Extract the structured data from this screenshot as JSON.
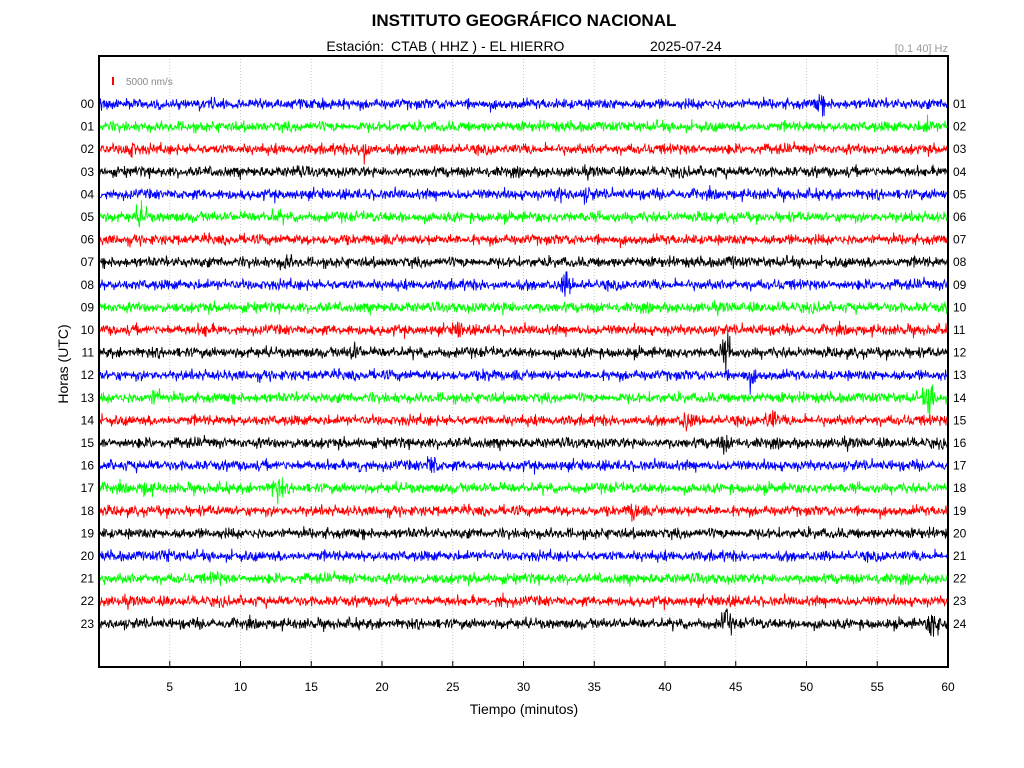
{
  "header": {
    "title": "INSTITUTO GEOGRÁFICO NACIONAL",
    "station_prefix": "Estación:",
    "station": "CTAB ( HHZ ) - EL HIERRO",
    "date": "2025-07-24",
    "filter": "[0.1 40] Hz",
    "scale": "5000 nm/s"
  },
  "chart_data": {
    "type": "line",
    "title": "INSTITUTO GEOGRÁFICO NACIONAL",
    "xlabel": "Tiempo (minutos)",
    "ylabel": "Horas (UTC)",
    "xlim": [
      0,
      60
    ],
    "x_ticks": [
      "5",
      "10",
      "15",
      "20",
      "25",
      "30",
      "35",
      "40",
      "45",
      "50",
      "55",
      "60"
    ],
    "grid": true,
    "left_labels": [
      "00",
      "01",
      "02",
      "03",
      "04",
      "05",
      "06",
      "07",
      "08",
      "09",
      "10",
      "11",
      "12",
      "13",
      "14",
      "15",
      "16",
      "17",
      "18",
      "19",
      "20",
      "21",
      "22",
      "23"
    ],
    "right_labels": [
      "01",
      "02",
      "03",
      "04",
      "05",
      "06",
      "07",
      "08",
      "09",
      "10",
      "11",
      "12",
      "13",
      "14",
      "15",
      "16",
      "17",
      "18",
      "19",
      "20",
      "21",
      "22",
      "23",
      "24"
    ],
    "trace_colors": [
      "#0000ff",
      "#00ff00",
      "#ff0000",
      "#000000"
    ],
    "scale_color": "#ff0000",
    "spikes": [
      {
        "hour": 0,
        "minute": 51.0,
        "amp": 1.6
      },
      {
        "hour": 1,
        "minute": 58.5,
        "amp": 1.5
      },
      {
        "hour": 2,
        "minute": 2.2,
        "amp": 1.6
      },
      {
        "hour": 2,
        "minute": 18.7,
        "amp": 2.0
      },
      {
        "hour": 3,
        "minute": 14.0,
        "amp": 1.2
      },
      {
        "hour": 4,
        "minute": 32.6,
        "amp": 1.5
      },
      {
        "hour": 4,
        "minute": 34.5,
        "amp": 1.4
      },
      {
        "hour": 5,
        "minute": 3.0,
        "amp": 1.8
      },
      {
        "hour": 5,
        "minute": 12.5,
        "amp": 1.3
      },
      {
        "hour": 6,
        "minute": 17.0,
        "amp": 1.1
      },
      {
        "hour": 7,
        "minute": 13.2,
        "amp": 1.4
      },
      {
        "hour": 7,
        "minute": 44.8,
        "amp": 1.2
      },
      {
        "hour": 8,
        "minute": 33.0,
        "amp": 1.8
      },
      {
        "hour": 9,
        "minute": 28.8,
        "amp": 1.3
      },
      {
        "hour": 10,
        "minute": 7.5,
        "amp": 1.3
      },
      {
        "hour": 10,
        "minute": 25.5,
        "amp": 1.7
      },
      {
        "hour": 11,
        "minute": 18.0,
        "amp": 1.6
      },
      {
        "hour": 11,
        "minute": 44.3,
        "amp": 2.2
      },
      {
        "hour": 12,
        "minute": 46.0,
        "amp": 1.6
      },
      {
        "hour": 12,
        "minute": 27.5,
        "amp": 1.3
      },
      {
        "hour": 13,
        "minute": 4.0,
        "amp": 1.6
      },
      {
        "hour": 13,
        "minute": 58.7,
        "amp": 2.4
      },
      {
        "hour": 14,
        "minute": 41.5,
        "amp": 1.7
      },
      {
        "hour": 14,
        "minute": 47.5,
        "amp": 1.8
      },
      {
        "hour": 15,
        "minute": 44.2,
        "amp": 1.5
      },
      {
        "hour": 16,
        "minute": 23.5,
        "amp": 1.9
      },
      {
        "hour": 16,
        "minute": 18.5,
        "amp": 1.4
      },
      {
        "hour": 17,
        "minute": 12.6,
        "amp": 2.0
      },
      {
        "hour": 17,
        "minute": 3.3,
        "amp": 1.4
      },
      {
        "hour": 18,
        "minute": 37.8,
        "amp": 1.6
      },
      {
        "hour": 19,
        "minute": 45.5,
        "amp": 1.1
      },
      {
        "hour": 20,
        "minute": 4.8,
        "amp": 1.3
      },
      {
        "hour": 21,
        "minute": 8.3,
        "amp": 1.3
      },
      {
        "hour": 22,
        "minute": 28.5,
        "amp": 1.4
      },
      {
        "hour": 22,
        "minute": 44.2,
        "amp": 1.3
      },
      {
        "hour": 23,
        "minute": 44.3,
        "amp": 2.0
      },
      {
        "hour": 23,
        "minute": 59.0,
        "amp": 2.2
      }
    ]
  }
}
